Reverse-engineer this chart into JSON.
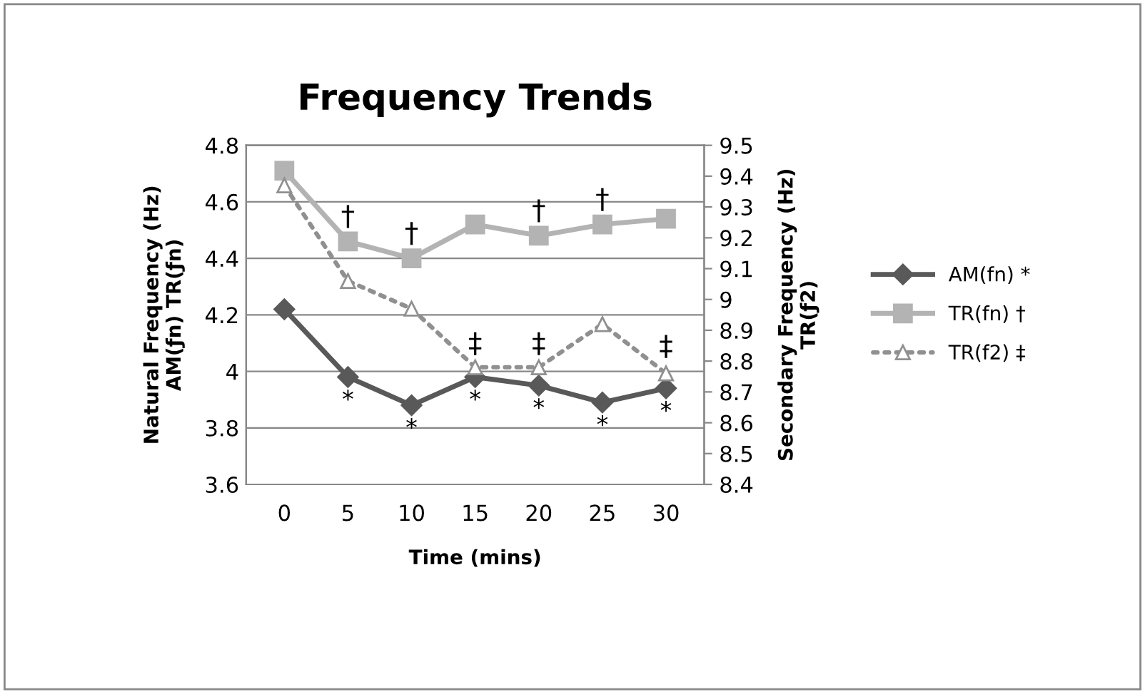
{
  "chart_data": {
    "type": "line",
    "title": "Frequency Trends",
    "xlabel": "Time (mins)",
    "ylabel": "Natural Frequency (Hz)\nAM(ƒn) TR(ƒn)",
    "y2label": "Secondary Frequency (Hz)\nTR(ƒ2)",
    "categories": [
      "0",
      "5",
      "10",
      "15",
      "20",
      "25",
      "30"
    ],
    "series": [
      {
        "name": "AM(fn) *",
        "color": "#595959",
        "marker": "diamond",
        "line_style": "solid",
        "values": [
          4.22,
          3.98,
          3.88,
          3.98,
          3.95,
          3.89,
          3.94
        ]
      },
      {
        "name": "TR(fn) †",
        "color": "#b3b3b3",
        "marker": "square",
        "line_style": "solid",
        "values": [
          4.71,
          4.46,
          4.4,
          4.52,
          4.48,
          4.52,
          4.54
        ]
      },
      {
        "name": "TR(f2) ‡",
        "color": "#909090",
        "marker": "triangle",
        "line_style": "dotted",
        "axis": "y2",
        "values": [
          9.37,
          9.06,
          8.97,
          8.78,
          8.78,
          8.92,
          8.76
        ]
      }
    ],
    "ylim": [
      3.6,
      4.8
    ],
    "yticks": [
      3.6,
      3.8,
      4,
      4.2,
      4.4,
      4.6,
      4.8
    ],
    "y2lim": [
      8.4,
      9.5
    ],
    "y2ticks": [
      8.4,
      8.5,
      8.6,
      8.7,
      8.8,
      8.9,
      9,
      9.1,
      9.2,
      9.3,
      9.4,
      9.5
    ],
    "grid": "y",
    "legend": "right",
    "annotations": [
      {
        "text": "*",
        "x": "5",
        "y": 3.98
      },
      {
        "text": "*",
        "x": "10",
        "y": 3.88
      },
      {
        "text": "*",
        "x": "15",
        "y": 3.98
      },
      {
        "text": "*",
        "x": "20",
        "y": 3.95
      },
      {
        "text": "*",
        "x": "25",
        "y": 3.89
      },
      {
        "text": "*",
        "x": "30",
        "y": 3.94
      },
      {
        "text": "†",
        "x": "5",
        "y": 4.46
      },
      {
        "text": "†",
        "x": "10",
        "y": 4.4
      },
      {
        "text": "†",
        "x": "20",
        "y": 4.48
      },
      {
        "text": "†",
        "x": "25",
        "y": 4.52
      },
      {
        "text": "‡",
        "x": "15",
        "y": 4.01
      },
      {
        "text": "‡",
        "x": "20",
        "y": 4.01
      },
      {
        "text": "‡",
        "x": "30",
        "y": 4.0
      }
    ]
  }
}
